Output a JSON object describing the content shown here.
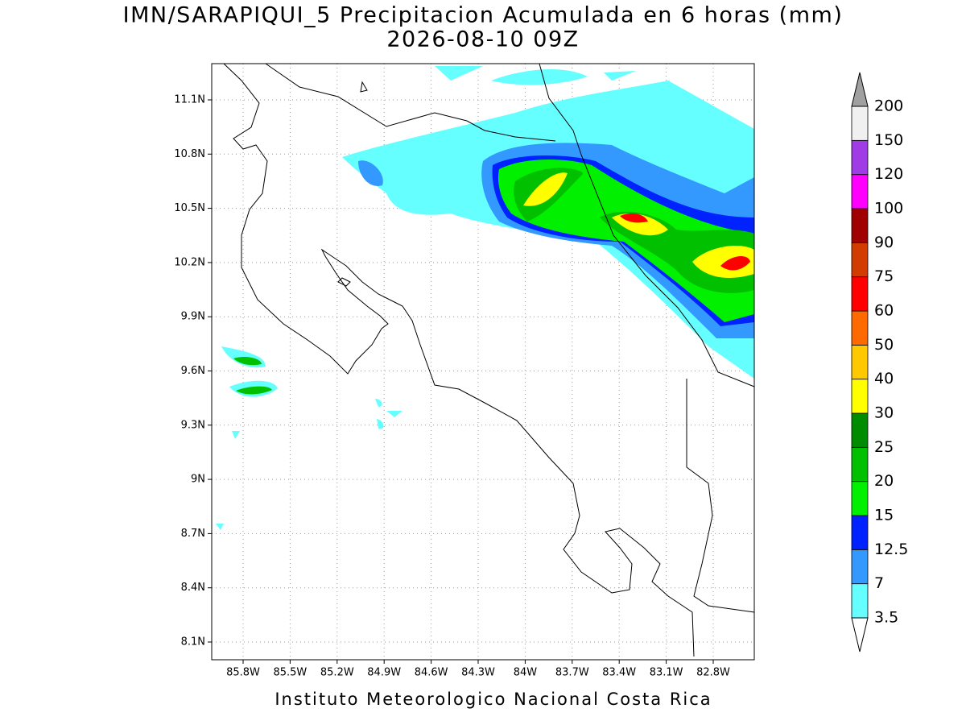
{
  "title": "IMN/SARAPIQUI_5 Precipitacion Acumulada en 6 horas (mm)",
  "subtitle": "2026-08-10 09Z",
  "lat_labels": [
    "11.1N",
    "10.8N",
    "10.5N",
    "10.2N",
    "9.9N",
    "9.6N",
    "9.3N",
    "9N",
    "8.7N",
    "8.4N",
    "8.1N"
  ],
  "lon_labels": [
    "85.8W",
    "85.5W",
    "85.2W",
    "84.9W",
    "84.6W",
    "84.3W",
    "84W",
    "83.7W",
    "83.4W",
    "83.1W",
    "82.8W"
  ],
  "colorbar": {
    "levels": [
      3.5,
      7,
      12.5,
      15,
      20,
      25,
      30,
      40,
      50,
      60,
      75,
      90,
      100,
      120,
      150,
      200
    ],
    "colors": [
      "#66ffff",
      "#3399ff",
      "#0022ff",
      "#00f000",
      "#00c000",
      "#008c00",
      "#ffff00",
      "#ffc800",
      "#ff6a00",
      "#ff0000",
      "#d23c00",
      "#a00000",
      "#ff00ff",
      "#a03ce6",
      "#f0f0f0"
    ],
    "under_color": "#ffffff",
    "over_color": "#a0a0a0"
  },
  "footer": "Instituto Meteorologico Nacional Costa Rica"
}
